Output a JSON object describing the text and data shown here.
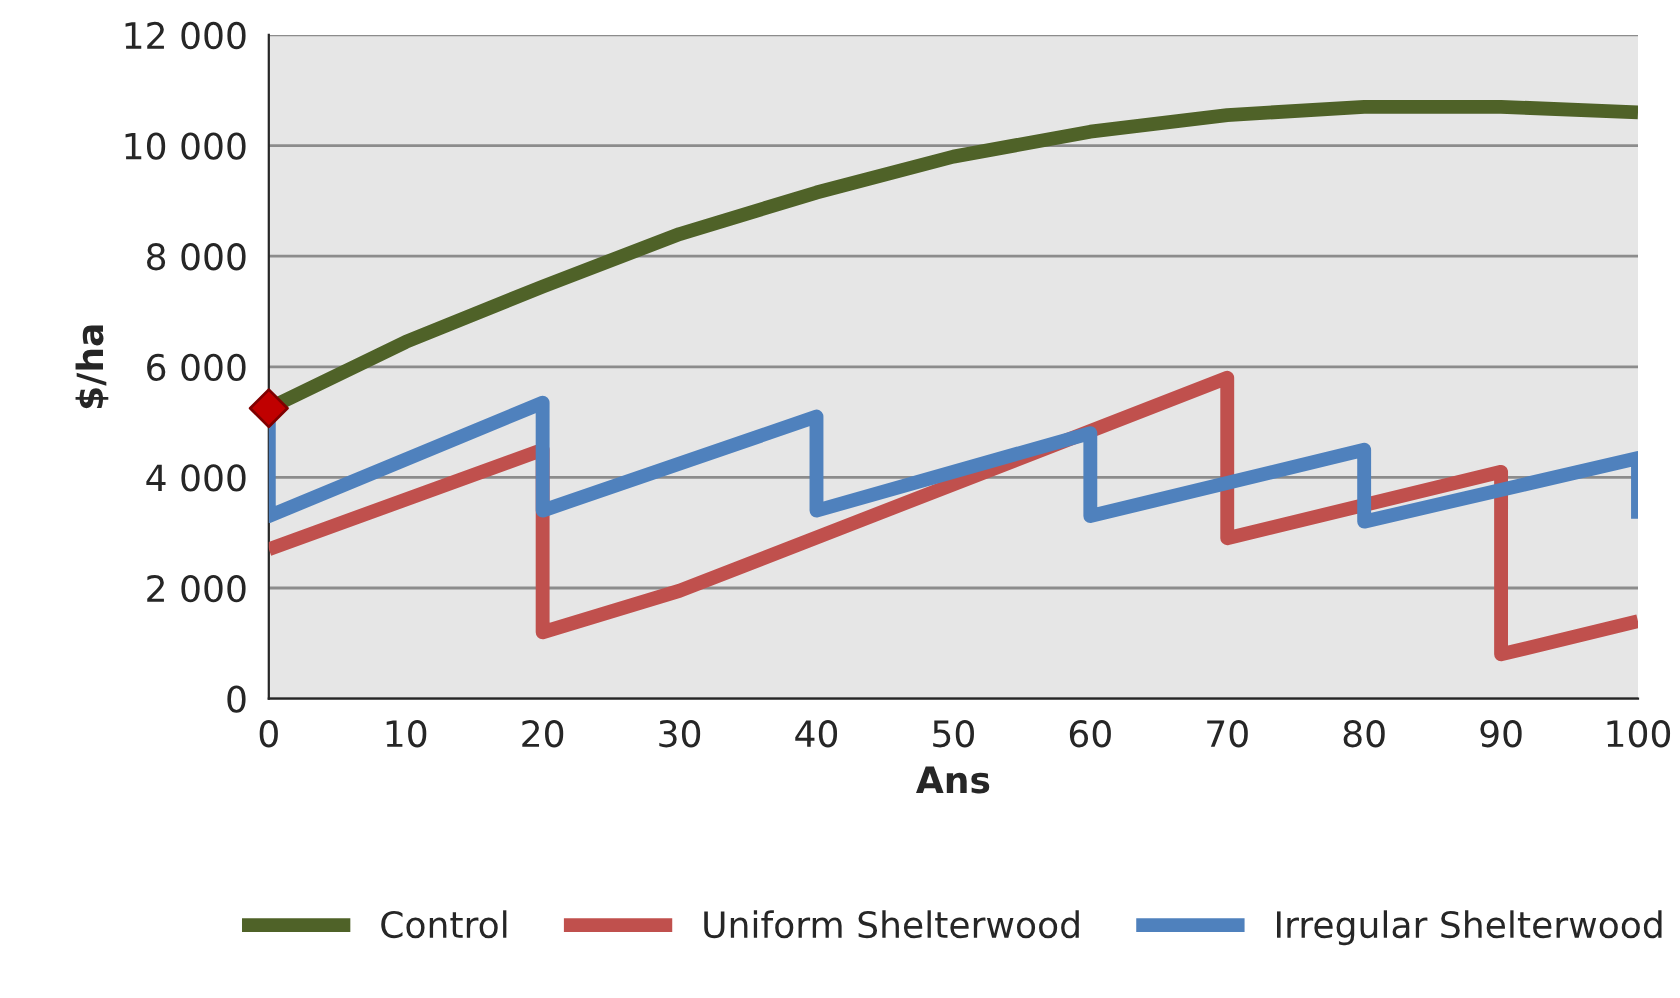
{
  "chart_data": {
    "type": "line",
    "xlabel": "Ans",
    "ylabel": "$/ha",
    "xlim": [
      0,
      100
    ],
    "xticks": [
      0,
      10,
      20,
      30,
      40,
      50,
      60,
      70,
      80,
      90,
      100
    ],
    "ylim": [
      0,
      12000
    ],
    "yticks": [
      {
        "value": 0,
        "label": "0"
      },
      {
        "value": 2000,
        "label": "2 000"
      },
      {
        "value": 4000,
        "label": "4 000"
      },
      {
        "value": 6000,
        "label": "6 000"
      },
      {
        "value": 8000,
        "label": "8 000"
      },
      {
        "value": 10000,
        "label": "10 000"
      },
      {
        "value": 12000,
        "label": "12 000"
      }
    ],
    "grid": "y",
    "legend": "bottom",
    "marker": "none",
    "line_style": "solid",
    "series": [
      {
        "name": "Control",
        "color": "#4f6228",
        "x": [
          0,
          10,
          20,
          30,
          40,
          50,
          60,
          70,
          80,
          90,
          100
        ],
        "values": [
          5250,
          6450,
          7450,
          8400,
          9150,
          9800,
          10250,
          10550,
          10700,
          10700,
          10600
        ]
      },
      {
        "name": "Uniform Shelterwood",
        "color": "#c0504d",
        "x": [
          0,
          20,
          20,
          30,
          70,
          70,
          90,
          90,
          100
        ],
        "values": [
          2700,
          4500,
          1200,
          1950,
          5800,
          2900,
          4100,
          800,
          1400
        ]
      },
      {
        "name": "Irregular Shelterwood",
        "color": "#4f81bd",
        "x": [
          0,
          0,
          20,
          20,
          40,
          40,
          60,
          60,
          80,
          80,
          100,
          100
        ],
        "values": [
          5250,
          3300,
          5350,
          3400,
          5100,
          3400,
          4800,
          3300,
          4500,
          3200,
          4350,
          3250
        ]
      },
      {
        "type": "scatter",
        "marker": "diamond",
        "color": "#c00000",
        "x": [
          0
        ],
        "values": [
          5250
        ]
      }
    ]
  }
}
